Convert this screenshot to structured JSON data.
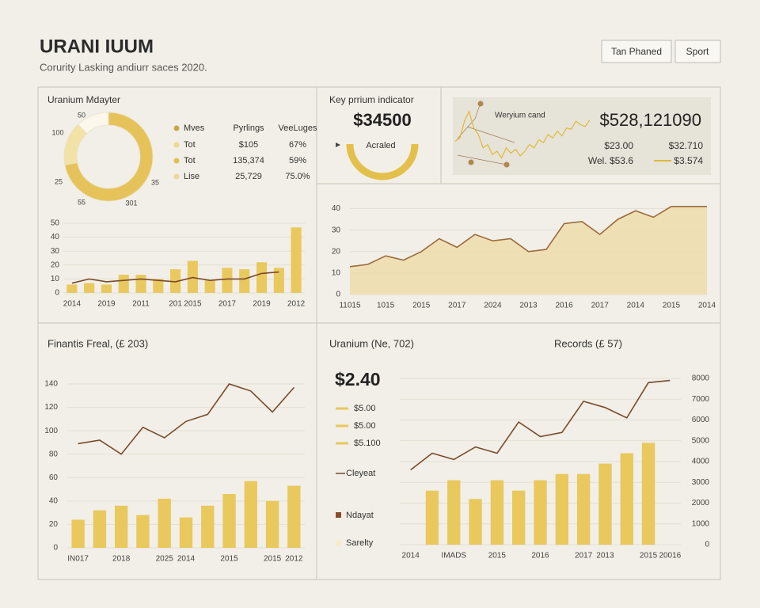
{
  "header": {
    "title": "URANI IUUM",
    "subtitle": "Corurity Lasking andiurr saces 2020.",
    "buttons": [
      "Tan Phaned",
      "Sport"
    ]
  },
  "kpi": {
    "title": "Key prrium indicator",
    "value": "$34500",
    "label": "Acraled"
  },
  "summary": {
    "label": "Weryium cand",
    "value": "$528,121090",
    "items": [
      "$23.00",
      "$32.710",
      "Wel.  $53.6",
      "$3.574"
    ]
  },
  "chart_data": [
    {
      "type": "pie",
      "title": "Uranium Mdayter",
      "values": [
        72,
        16,
        12
      ],
      "colors": [
        "#e6c35a",
        "#f3e2a6",
        "#fbf7ea"
      ],
      "annotations": [
        "50",
        "100",
        "25",
        "55",
        "301",
        "35"
      ],
      "table": {
        "columns": [
          "Mves",
          "Pyrlings",
          "VeeLuges"
        ],
        "rows": [
          [
            "Tot",
            "$105",
            "67%"
          ],
          [
            "Tot",
            "135,374",
            "59%"
          ],
          [
            "Lise",
            "25,729",
            "75.0%"
          ]
        ],
        "row_colors": [
          "#c9a648",
          "#f0d98c",
          "#e2bf55",
          "#ecd79a"
        ]
      }
    },
    {
      "type": "bar",
      "categories": [
        "2014",
        null,
        "2019",
        null,
        "2011",
        null,
        "201",
        "2015",
        null,
        "2017",
        null,
        "2019",
        null,
        "2012"
      ],
      "series": [
        {
          "type": "bar",
          "color": "#e9c85e",
          "values": [
            6,
            7,
            6,
            13,
            13,
            10,
            17,
            23,
            9,
            18,
            17,
            22,
            18,
            47
          ]
        },
        {
          "type": "line",
          "color": "#7a4a2a",
          "values": [
            7,
            10,
            8,
            9,
            10,
            9,
            8,
            11,
            9,
            10,
            10,
            14,
            15,
            null
          ]
        }
      ],
      "ylim": [
        0,
        50
      ],
      "yticks": [
        0,
        10,
        20,
        30,
        40,
        50
      ],
      "grid": true
    },
    {
      "type": "area",
      "categories": [
        "11015",
        null,
        "1015",
        null,
        "2015",
        null,
        "2017",
        null,
        "2024",
        null,
        "2013",
        null,
        "2016",
        null,
        "2017",
        null,
        "2014",
        null,
        "2015",
        null,
        "2014"
      ],
      "series": [
        {
          "type": "area",
          "color": "#9c6b3c",
          "fill": "#efdcaa",
          "values": [
            13,
            14,
            18,
            16,
            20,
            26,
            22,
            28,
            25,
            26,
            20,
            21,
            33,
            34,
            28,
            35,
            39,
            36,
            41,
            41,
            41
          ]
        }
      ],
      "ylim": [
        0,
        45
      ],
      "yticks": [
        0,
        10,
        20,
        30,
        40
      ],
      "grid": true
    },
    {
      "type": "line",
      "color": "#e0b93a",
      "values": [
        40,
        45,
        70,
        85,
        60,
        50,
        30,
        35,
        20,
        25,
        15,
        30,
        22,
        28,
        18,
        25,
        35,
        30,
        42,
        38,
        50,
        45,
        55,
        48,
        60,
        58,
        70,
        65,
        62,
        72
      ],
      "ylim": [
        0,
        100
      ]
    },
    {
      "type": "bar",
      "title": "Finantis Freal, (£ 203)",
      "categories": [
        "IN017",
        null,
        "2018",
        null,
        "2025",
        "2014",
        null,
        "2015",
        null,
        "2015",
        "2012"
      ],
      "series": [
        {
          "type": "bar",
          "color": "#e9c85e",
          "values": [
            24,
            32,
            36,
            28,
            42,
            26,
            36,
            46,
            57,
            40,
            53
          ]
        },
        {
          "type": "line",
          "color": "#7a4a2a",
          "values": [
            89,
            92,
            80,
            103,
            94,
            108,
            114,
            140,
            134,
            116,
            137
          ]
        }
      ],
      "ylim": [
        0,
        140
      ],
      "yticks": [
        0,
        20,
        40,
        60,
        80,
        100,
        120,
        140
      ],
      "grid": true
    },
    {
      "type": "bar",
      "title": "Uranium (Ne, 702)",
      "subtitle": "Records (£ 57)",
      "value": "$2.40",
      "value_list": [
        "$5.00",
        "$5.00",
        "$5.100"
      ],
      "categories": [
        "2014",
        null,
        "IMADS",
        null,
        "2015",
        null,
        "2016",
        null,
        "2017",
        "2013",
        null,
        "2015",
        "20016"
      ],
      "series": [
        {
          "type": "bar",
          "name": "Ndayat",
          "color": "#e9c85e",
          "values": [
            null,
            2600,
            3100,
            2200,
            3100,
            2600,
            3100,
            3400,
            3400,
            3900,
            4400,
            4900,
            null
          ]
        },
        {
          "type": "line",
          "name": "Cleyeat",
          "color": "#7a4a2a",
          "values": [
            3600,
            4400,
            4100,
            4700,
            4400,
            5900,
            5200,
            5400,
            6900,
            6600,
            6100,
            7800,
            7900
          ]
        }
      ],
      "legend_extra": {
        "label": "Sarelty",
        "color": "#f6eccc"
      },
      "ylim": [
        0,
        8000
      ],
      "yticks": [
        0,
        1000,
        2000,
        3000,
        4000,
        5000,
        6000,
        7000,
        8000
      ],
      "yaxis_side": "right",
      "grid": true
    }
  ]
}
